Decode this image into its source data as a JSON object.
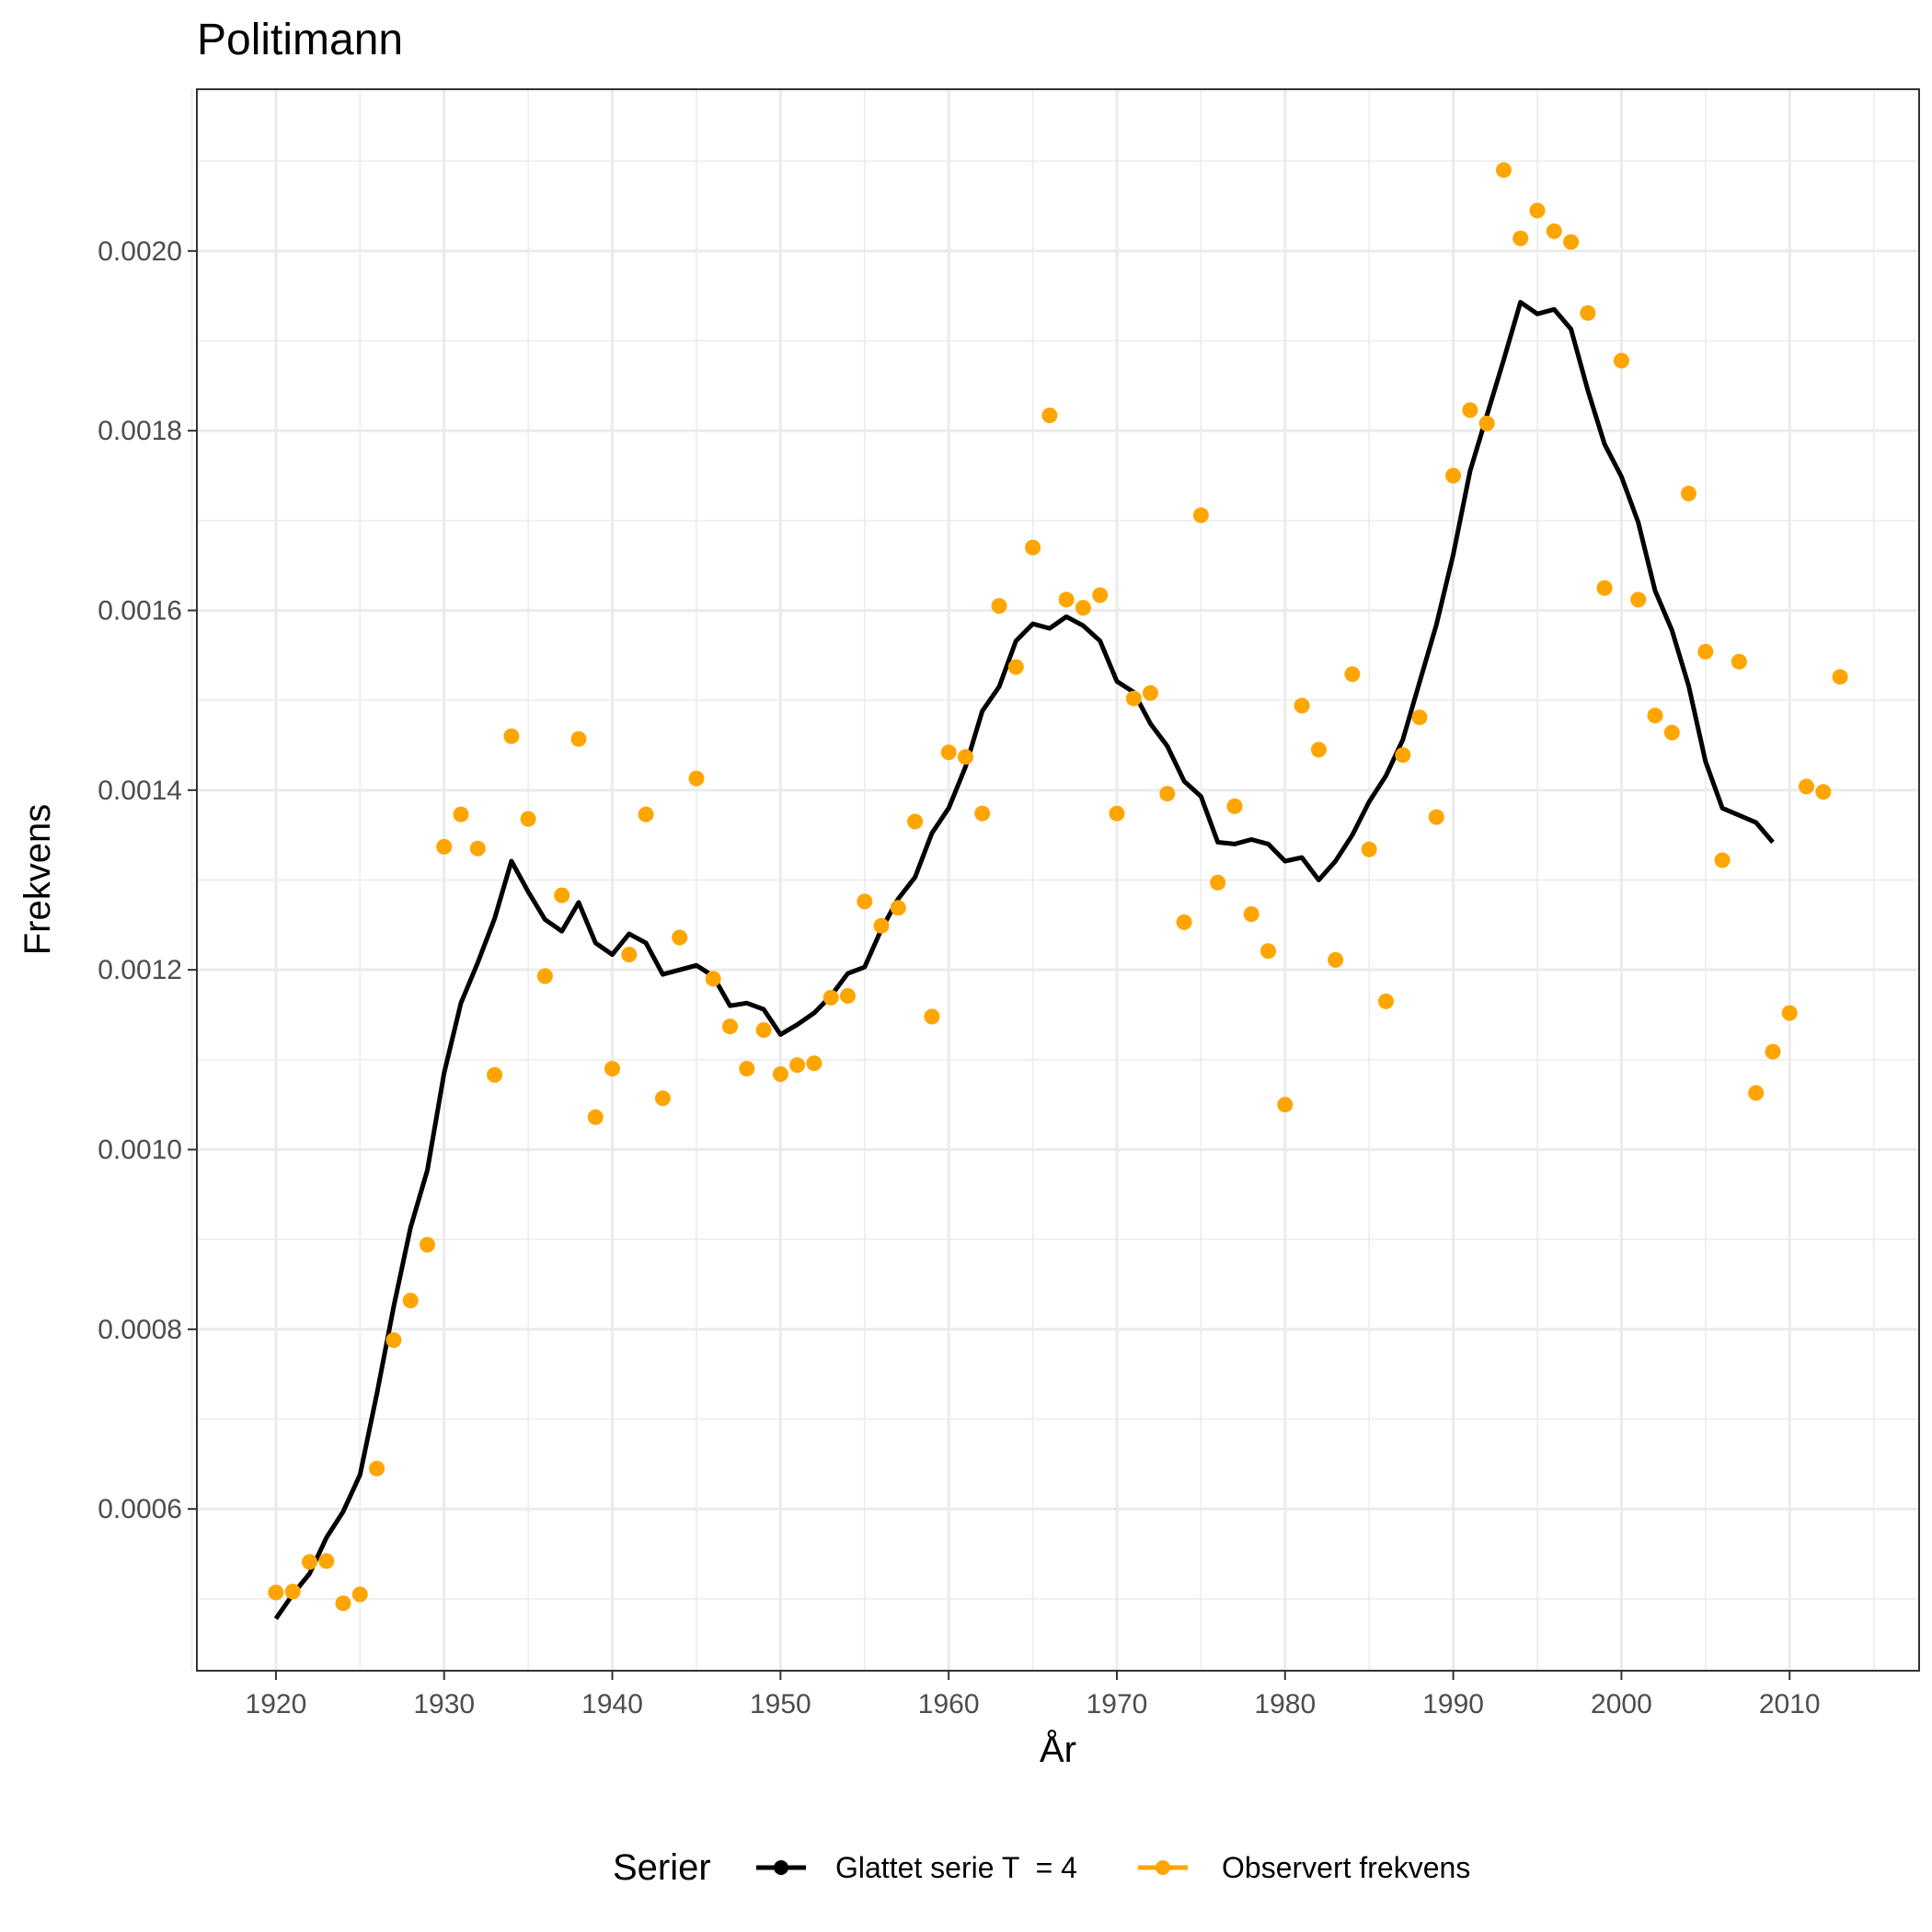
{
  "chart_data": {
    "type": "line",
    "title": "Politimann",
    "xlabel": "År",
    "ylabel": "Frekvens",
    "xlim": [
      1915.3,
      2017.7
    ],
    "ylim": [
      0.00042,
      0.00218
    ],
    "x_ticks": [
      1920,
      1930,
      1940,
      1950,
      1960,
      1970,
      1980,
      1990,
      2000,
      2010
    ],
    "x_minor_ticks": [
      1915,
      1925,
      1935,
      1945,
      1955,
      1965,
      1975,
      1985,
      1995,
      2005,
      2015
    ],
    "y_ticks": [
      0.0006,
      0.0008,
      0.001,
      0.0012,
      0.0014,
      0.0016,
      0.0018,
      0.002
    ],
    "y_tick_labels": [
      "0.0006",
      "0.0008",
      "0.0010",
      "0.0012",
      "0.0014",
      "0.0016",
      "0.0018",
      "0.0020"
    ],
    "y_minor_ticks": [
      0.0005,
      0.0007,
      0.0009,
      0.0011,
      0.0013,
      0.0015,
      0.0017,
      0.0019,
      0.0021
    ],
    "grid": true,
    "legend_position": "bottom",
    "legend_title": "Serier",
    "series": [
      {
        "name": "Glattet serie T  = 4",
        "type": "line",
        "color": "#000000",
        "x": [
          1920,
          1921,
          1922,
          1923,
          1924,
          1925,
          1926,
          1927,
          1928,
          1929,
          1930,
          1931,
          1932,
          1933,
          1934,
          1935,
          1936,
          1937,
          1938,
          1939,
          1940,
          1941,
          1942,
          1943,
          1944,
          1945,
          1946,
          1947,
          1948,
          1949,
          1950,
          1951,
          1952,
          1953,
          1954,
          1955,
          1956,
          1957,
          1958,
          1959,
          1960,
          1961,
          1962,
          1963,
          1964,
          1965,
          1966,
          1967,
          1968,
          1969,
          1970,
          1971,
          1972,
          1973,
          1974,
          1975,
          1976,
          1977,
          1978,
          1979,
          1980,
          1981,
          1982,
          1983,
          1984,
          1985,
          1986,
          1987,
          1988,
          1989,
          1990,
          1991,
          1992,
          1993,
          1994,
          1995,
          1996,
          1997,
          1998,
          1999,
          2000,
          2001,
          2002,
          2003,
          2004,
          2005,
          2006,
          2007,
          2008,
          2009
        ],
        "y": [
          0.000478,
          0.000505,
          0.000528,
          0.000568,
          0.000597,
          0.000638,
          0.000728,
          0.000825,
          0.000913,
          0.000977,
          0.001085,
          0.001163,
          0.001208,
          0.001257,
          0.001321,
          0.001287,
          0.001256,
          0.001243,
          0.001275,
          0.00123,
          0.001217,
          0.00124,
          0.00123,
          0.001195,
          0.0012,
          0.001205,
          0.001193,
          0.00116,
          0.001163,
          0.001156,
          0.001128,
          0.001139,
          0.001152,
          0.001171,
          0.001196,
          0.001203,
          0.001245,
          0.001279,
          0.001303,
          0.001352,
          0.00138,
          0.001426,
          0.001488,
          0.001515,
          0.001566,
          0.001585,
          0.00158,
          0.001593,
          0.001583,
          0.001566,
          0.001521,
          0.001509,
          0.001474,
          0.001449,
          0.00141,
          0.001393,
          0.001342,
          0.00134,
          0.001345,
          0.00134,
          0.001321,
          0.001325,
          0.0013,
          0.001321,
          0.00135,
          0.001387,
          0.001416,
          0.001456,
          0.00152,
          0.001584,
          0.001662,
          0.001755,
          0.001817,
          0.001879,
          0.001943,
          0.00193,
          0.001935,
          0.001913,
          0.001845,
          0.001785,
          0.001749,
          0.001698,
          0.001622,
          0.001578,
          0.001516,
          0.001432,
          0.00138,
          0.001372,
          0.001364,
          0.001342
        ]
      },
      {
        "name": "Observert frekvens",
        "type": "scatter",
        "color": "#FFA500",
        "x": [
          1920,
          1921,
          1922,
          1923,
          1924,
          1925,
          1926,
          1927,
          1928,
          1929,
          1930,
          1931,
          1932,
          1933,
          1934,
          1935,
          1936,
          1937,
          1938,
          1939,
          1940,
          1941,
          1942,
          1943,
          1944,
          1945,
          1946,
          1947,
          1948,
          1949,
          1950,
          1951,
          1952,
          1953,
          1954,
          1955,
          1956,
          1957,
          1958,
          1959,
          1960,
          1961,
          1962,
          1963,
          1964,
          1965,
          1966,
          1967,
          1968,
          1969,
          1970,
          1971,
          1972,
          1973,
          1974,
          1975,
          1976,
          1977,
          1978,
          1979,
          1980,
          1981,
          1982,
          1983,
          1984,
          1985,
          1986,
          1987,
          1988,
          1989,
          1990,
          1991,
          1992,
          1993,
          1994,
          1995,
          1996,
          1997,
          1998,
          1999,
          2000,
          2001,
          2002,
          2003,
          2004,
          2005,
          2006,
          2007,
          2008,
          2009,
          2010,
          2011,
          2012,
          2013
        ],
        "y": [
          0.000507,
          0.000508,
          0.000541,
          0.000542,
          0.000495,
          0.000505,
          0.000645,
          0.000788,
          0.000832,
          0.000894,
          0.001337,
          0.001373,
          0.001335,
          0.001083,
          0.00146,
          0.001368,
          0.001193,
          0.001283,
          0.001457,
          0.001036,
          0.00109,
          0.001217,
          0.001373,
          0.001057,
          0.001236,
          0.001413,
          0.00119,
          0.001137,
          0.00109,
          0.001133,
          0.001084,
          0.001094,
          0.001096,
          0.001169,
          0.001171,
          0.001276,
          0.001249,
          0.001269,
          0.001365,
          0.001148,
          0.001442,
          0.001437,
          0.001374,
          0.001605,
          0.001537,
          0.00167,
          0.001817,
          0.001612,
          0.001603,
          0.001617,
          0.001374,
          0.001502,
          0.001508,
          0.001396,
          0.001253,
          0.001706,
          0.001297,
          0.001382,
          0.001262,
          0.001221,
          0.00105,
          0.001494,
          0.001445,
          0.001211,
          0.001529,
          0.001334,
          0.001165,
          0.001439,
          0.001481,
          0.00137,
          0.00175,
          0.001823,
          0.001808,
          0.00209,
          0.002014,
          0.002045,
          0.002022,
          0.00201,
          0.001931,
          0.001625,
          0.001878,
          0.001612,
          0.001483,
          0.001464,
          0.00173,
          0.001554,
          0.001322,
          0.001543,
          0.001063,
          0.001109,
          0.001152,
          0.001404,
          0.001398,
          0.001526
        ]
      }
    ]
  }
}
